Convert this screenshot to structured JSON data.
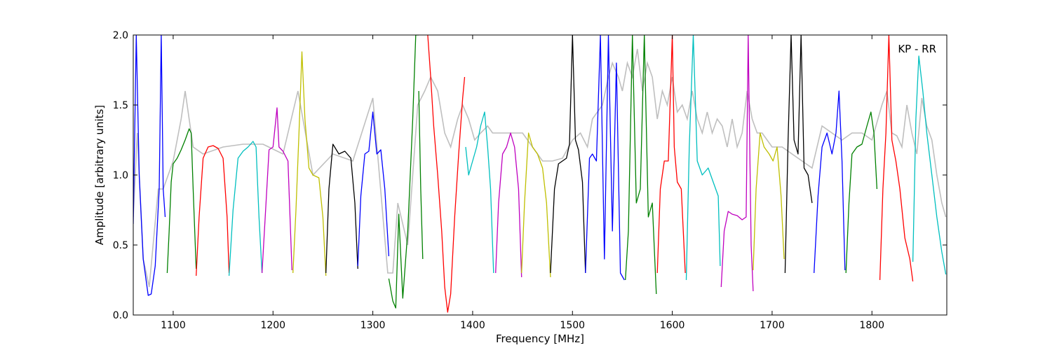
{
  "chart_data": {
    "type": "line",
    "title": "",
    "annotation": "KP - RR",
    "xlabel": "Frequency [MHz]",
    "ylabel": "Amplitude [arbitrary units]",
    "xlim": [
      1060,
      1875
    ],
    "ylim": [
      0.0,
      2.0
    ],
    "xticks": [
      1100,
      1200,
      1300,
      1400,
      1500,
      1600,
      1700,
      1800
    ],
    "xtick_labels": [
      "1100",
      "1200",
      "1300",
      "1400",
      "1500",
      "1600",
      "1700",
      "1800"
    ],
    "yticks": [
      0.0,
      0.5,
      1.0,
      1.5,
      2.0
    ],
    "ytick_labels": [
      "0.0",
      "0.5",
      "1.0",
      "1.5",
      "2.0"
    ],
    "grid": false,
    "legend": "none",
    "background_trace_color": "#bfbfbf",
    "series": [
      {
        "color": "#0000ff",
        "x": [
          1060,
          1063,
          1066,
          1070,
          1075,
          1078,
          1082,
          1086,
          1088,
          1090,
          1092
        ],
        "y": [
          0.65,
          2.0,
          1.0,
          0.4,
          0.14,
          0.15,
          0.35,
          0.9,
          2.0,
          0.9,
          0.7
        ]
      },
      {
        "color": "#008000",
        "x": [
          1094,
          1096,
          1098,
          1100,
          1104,
          1108,
          1112,
          1116,
          1118,
          1120,
          1123
        ],
        "y": [
          0.3,
          0.6,
          0.95,
          1.08,
          1.12,
          1.18,
          1.25,
          1.33,
          1.3,
          0.9,
          0.33
        ]
      },
      {
        "color": "#ff0000",
        "x": [
          1123,
          1126,
          1130,
          1135,
          1140,
          1145,
          1150,
          1154,
          1156
        ],
        "y": [
          0.28,
          0.7,
          1.12,
          1.2,
          1.21,
          1.19,
          1.12,
          0.7,
          0.3
        ]
      },
      {
        "color": "#00bfbf",
        "x": [
          1156,
          1160,
          1165,
          1170,
          1175,
          1180,
          1183,
          1186,
          1189
        ],
        "y": [
          0.28,
          0.75,
          1.12,
          1.17,
          1.2,
          1.24,
          1.2,
          0.7,
          0.3
        ]
      },
      {
        "color": "#bf00bf",
        "x": [
          1189,
          1193,
          1196,
          1200,
          1204,
          1206,
          1210,
          1215,
          1219
        ],
        "y": [
          0.3,
          0.8,
          1.18,
          1.2,
          1.48,
          1.2,
          1.17,
          1.1,
          0.32
        ]
      },
      {
        "color": "#bfbf00",
        "x": [
          1220,
          1223,
          1226,
          1229,
          1232,
          1236,
          1240,
          1246,
          1250,
          1253
        ],
        "y": [
          0.3,
          0.75,
          1.3,
          1.88,
          1.4,
          1.05,
          1.0,
          0.98,
          0.7,
          0.28
        ]
      },
      {
        "color": "#000000",
        "x": [
          1253,
          1256,
          1260,
          1266,
          1272,
          1278,
          1282,
          1285
        ],
        "y": [
          0.3,
          0.9,
          1.22,
          1.15,
          1.17,
          1.12,
          0.8,
          0.33
        ]
      },
      {
        "color": "#0000ff",
        "x": [
          1285,
          1288,
          1292,
          1296,
          1300,
          1304,
          1308,
          1312,
          1316
        ],
        "y": [
          0.35,
          0.85,
          1.15,
          1.17,
          1.45,
          1.15,
          1.18,
          0.9,
          0.42
        ]
      },
      {
        "color": "#008000",
        "x": [
          1316,
          1320,
          1323,
          1326,
          1330,
          1335,
          1340,
          1343,
          1346
        ],
        "y": [
          0.26,
          0.1,
          0.05,
          0.72,
          0.12,
          0.6,
          1.4,
          2.0,
          2.0
        ]
      },
      {
        "color": "#008000",
        "x": [
          1346,
          1348,
          1350
        ],
        "y": [
          1.6,
          0.9,
          0.4
        ]
      },
      {
        "color": "#ff0000",
        "x": [
          1355,
          1358,
          1361,
          1365,
          1369,
          1372,
          1375,
          1378,
          1382,
          1386,
          1390,
          1392
        ],
        "y": [
          2.0,
          1.7,
          1.35,
          1.0,
          0.6,
          0.2,
          0.02,
          0.15,
          0.7,
          1.15,
          1.55,
          1.7
        ]
      },
      {
        "color": "#00bfbf",
        "x": [
          1393,
          1396,
          1400,
          1404,
          1408,
          1412,
          1415,
          1418,
          1421
        ],
        "y": [
          1.2,
          1.0,
          1.1,
          1.2,
          1.35,
          1.45,
          1.2,
          0.9,
          0.3
        ]
      },
      {
        "color": "#bf00bf",
        "x": [
          1423,
          1426,
          1430,
          1434,
          1438,
          1442,
          1446,
          1449
        ],
        "y": [
          0.3,
          0.8,
          1.15,
          1.2,
          1.3,
          1.2,
          0.9,
          0.27
        ]
      },
      {
        "color": "#bfbf00",
        "x": [
          1449,
          1452,
          1456,
          1460,
          1465,
          1470,
          1474,
          1478
        ],
        "y": [
          0.3,
          0.8,
          1.3,
          1.2,
          1.15,
          1.05,
          0.8,
          0.27
        ]
      },
      {
        "color": "#000000",
        "x": [
          1478,
          1482,
          1486,
          1490,
          1494,
          1497,
          1500,
          1503,
          1506,
          1510,
          1513
        ],
        "y": [
          0.3,
          0.9,
          1.08,
          1.1,
          1.12,
          1.22,
          2.0,
          1.25,
          1.18,
          0.95,
          0.3
        ]
      },
      {
        "color": "#0000ff",
        "x": [
          1513,
          1517,
          1520,
          1524,
          1528,
          1532,
          1536,
          1540,
          1544,
          1548,
          1552
        ],
        "y": [
          0.3,
          1.12,
          1.15,
          1.1,
          2.0,
          0.4,
          2.0,
          0.6,
          1.8,
          0.3,
          0.25
        ]
      },
      {
        "color": "#008000",
        "x": [
          1553,
          1556,
          1560,
          1564,
          1568,
          1572,
          1576,
          1580,
          1584
        ],
        "y": [
          0.25,
          0.6,
          2.0,
          0.8,
          0.9,
          2.0,
          0.7,
          0.8,
          0.15
        ]
      },
      {
        "color": "#ff0000",
        "x": [
          1585,
          1588,
          1592,
          1596,
          1600,
          1602,
          1605,
          1609,
          1613
        ],
        "y": [
          0.3,
          0.9,
          1.1,
          1.1,
          2.0,
          1.2,
          0.95,
          0.9,
          0.3
        ]
      },
      {
        "color": "#00bfbf",
        "x": [
          1614,
          1617,
          1621,
          1625,
          1630,
          1636,
          1641,
          1646,
          1648
        ],
        "y": [
          0.25,
          1.2,
          2.0,
          1.1,
          1.0,
          1.05,
          0.95,
          0.85,
          0.35
        ]
      },
      {
        "color": "#bf00bf",
        "x": [
          1649,
          1652,
          1656,
          1660,
          1665,
          1670,
          1674,
          1676,
          1679,
          1681
        ],
        "y": [
          0.2,
          0.6,
          0.74,
          0.72,
          0.71,
          0.68,
          0.7,
          2.0,
          0.5,
          0.17
        ]
      },
      {
        "color": "#bfbf00",
        "x": [
          1681,
          1684,
          1688,
          1692,
          1697,
          1701,
          1705,
          1709,
          1712
        ],
        "y": [
          0.32,
          0.9,
          1.3,
          1.2,
          1.15,
          1.1,
          1.2,
          0.85,
          0.4
        ]
      },
      {
        "color": "#000000",
        "x": [
          1713,
          1716,
          1719,
          1722,
          1726,
          1729,
          1732,
          1736,
          1740
        ],
        "y": [
          0.3,
          1.25,
          2.0,
          1.25,
          1.15,
          2.0,
          1.05,
          1.0,
          0.8
        ]
      },
      {
        "color": "#0000ff",
        "x": [
          1742,
          1746,
          1750,
          1755,
          1760,
          1764,
          1767,
          1770,
          1773
        ],
        "y": [
          0.3,
          0.85,
          1.2,
          1.3,
          1.15,
          1.3,
          1.6,
          1.1,
          0.32
        ]
      },
      {
        "color": "#008000",
        "x": [
          1774,
          1777,
          1780,
          1785,
          1790,
          1795,
          1799,
          1802,
          1805
        ],
        "y": [
          0.3,
          0.8,
          1.15,
          1.2,
          1.22,
          1.35,
          1.45,
          1.3,
          0.9
        ]
      },
      {
        "color": "#ff0000",
        "x": [
          1808,
          1811,
          1814,
          1817,
          1820,
          1824,
          1828,
          1833,
          1838,
          1841
        ],
        "y": [
          0.25,
          0.9,
          1.3,
          2.0,
          1.25,
          1.1,
          0.9,
          0.55,
          0.4,
          0.24
        ]
      },
      {
        "color": "#00bfbf",
        "x": [
          1841,
          1844,
          1847,
          1851,
          1855,
          1860,
          1865,
          1870,
          1874
        ],
        "y": [
          0.38,
          1.4,
          1.85,
          1.6,
          1.3,
          1.0,
          0.7,
          0.45,
          0.29
        ]
      }
    ],
    "background_trace": {
      "x": [
        1060,
        1064,
        1070,
        1076,
        1085,
        1090,
        1100,
        1108,
        1112,
        1120,
        1130,
        1150,
        1170,
        1190,
        1210,
        1225,
        1240,
        1260,
        1280,
        1300,
        1315,
        1320,
        1325,
        1335,
        1345,
        1352,
        1358,
        1365,
        1372,
        1378,
        1385,
        1390,
        1396,
        1402,
        1408,
        1415,
        1420,
        1430,
        1440,
        1450,
        1460,
        1470,
        1480,
        1490,
        1500,
        1508,
        1515,
        1520,
        1525,
        1530,
        1536,
        1540,
        1546,
        1550,
        1555,
        1560,
        1565,
        1570,
        1575,
        1580,
        1585,
        1590,
        1595,
        1600,
        1605,
        1610,
        1615,
        1620,
        1625,
        1630,
        1635,
        1640,
        1645,
        1650,
        1655,
        1660,
        1665,
        1670,
        1675,
        1680,
        1685,
        1690,
        1695,
        1700,
        1710,
        1720,
        1730,
        1740,
        1750,
        1760,
        1770,
        1780,
        1790,
        1800,
        1810,
        1815,
        1820,
        1825,
        1830,
        1835,
        1840,
        1845,
        1850,
        1855,
        1860,
        1865,
        1870,
        1874
      ],
      "y": [
        0.7,
        1.3,
        0.4,
        0.2,
        0.9,
        0.9,
        1.1,
        1.4,
        1.6,
        1.2,
        1.15,
        1.2,
        1.22,
        1.22,
        1.15,
        1.6,
        1.0,
        1.15,
        1.1,
        1.55,
        0.3,
        0.3,
        0.8,
        0.5,
        1.5,
        1.6,
        1.7,
        1.6,
        1.3,
        1.2,
        1.4,
        1.5,
        1.4,
        1.25,
        1.3,
        1.35,
        1.3,
        1.3,
        1.3,
        1.3,
        1.2,
        1.1,
        1.1,
        1.12,
        1.25,
        1.3,
        1.2,
        1.4,
        1.45,
        1.5,
        1.7,
        1.8,
        1.7,
        1.6,
        1.8,
        1.7,
        1.9,
        1.6,
        1.8,
        1.7,
        1.4,
        1.6,
        1.5,
        1.7,
        1.45,
        1.5,
        1.4,
        1.6,
        1.4,
        1.3,
        1.45,
        1.3,
        1.4,
        1.35,
        1.2,
        1.4,
        1.2,
        1.3,
        1.6,
        1.4,
        1.3,
        1.3,
        1.25,
        1.2,
        1.2,
        1.15,
        1.1,
        1.05,
        1.35,
        1.3,
        1.25,
        1.3,
        1.3,
        1.25,
        1.5,
        1.6,
        1.3,
        1.28,
        1.2,
        1.5,
        1.3,
        1.15,
        1.55,
        1.35,
        1.25,
        1.0,
        0.8,
        0.7
      ]
    }
  }
}
